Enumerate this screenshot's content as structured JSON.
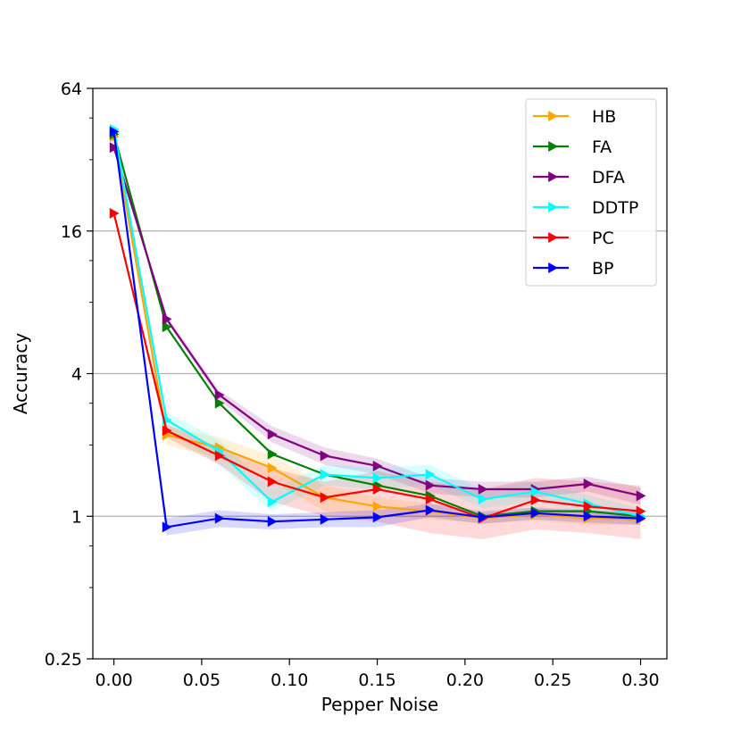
{
  "chart_data": {
    "type": "line",
    "xlabel": "Pepper Noise",
    "ylabel": "Accuracy",
    "xlim": [
      -0.012,
      0.315
    ],
    "ylim": [
      0.25,
      64
    ],
    "yscale": "log2",
    "x_ticks": [
      0.0,
      0.05,
      0.1,
      0.15,
      0.2,
      0.25,
      0.3
    ],
    "x_tick_labels": [
      "0.00",
      "0.05",
      "0.10",
      "0.15",
      "0.20",
      "0.25",
      "0.30"
    ],
    "y_ticks": [
      0.25,
      1,
      4,
      16,
      64
    ],
    "y_tick_labels": [
      "0.25",
      "1",
      "4",
      "16",
      "64"
    ],
    "grid": "y-major",
    "legend_position": "top-right",
    "x": [
      0.0,
      0.03,
      0.06,
      0.09,
      0.12,
      0.15,
      0.18,
      0.21,
      0.24,
      0.27,
      0.3
    ],
    "series": [
      {
        "name": "HB",
        "color": "#ffa500",
        "values": [
          40,
          2.2,
          1.95,
          1.6,
          1.2,
          1.1,
          1.05,
          0.98,
          1.02,
          0.98,
          0.97
        ],
        "band_low": [
          40,
          2.0,
          1.75,
          1.4,
          1.05,
          1.0,
          0.97,
          0.93,
          0.96,
          0.92,
          0.92
        ],
        "band_high": [
          40,
          2.4,
          2.15,
          1.8,
          1.35,
          1.2,
          1.13,
          1.03,
          1.08,
          1.04,
          1.02
        ]
      },
      {
        "name": "FA",
        "color": "#008000",
        "values": [
          41,
          6.3,
          3.0,
          1.83,
          1.5,
          1.35,
          1.22,
          1.0,
          1.05,
          1.05,
          1.0
        ],
        "band_low": [
          41,
          6.3,
          3.0,
          1.83,
          1.5,
          1.35,
          1.22,
          1.0,
          1.05,
          1.05,
          1.0
        ],
        "band_high": [
          41,
          6.3,
          3.0,
          1.83,
          1.5,
          1.35,
          1.22,
          1.0,
          1.05,
          1.05,
          1.0
        ]
      },
      {
        "name": "DFA",
        "color": "#800080",
        "values": [
          36,
          6.8,
          3.25,
          2.22,
          1.8,
          1.63,
          1.35,
          1.3,
          1.3,
          1.37,
          1.22
        ],
        "band_low": [
          36,
          6.6,
          3.1,
          2.05,
          1.65,
          1.5,
          1.25,
          1.2,
          1.2,
          1.27,
          1.12
        ],
        "band_high": [
          36,
          7.0,
          3.4,
          2.4,
          1.95,
          1.75,
          1.45,
          1.4,
          1.4,
          1.47,
          1.32
        ]
      },
      {
        "name": "DDTP",
        "color": "#00ffff",
        "values": [
          43,
          2.55,
          1.88,
          1.15,
          1.5,
          1.45,
          1.5,
          1.18,
          1.27,
          1.13,
          1.0
        ],
        "band_low": [
          43,
          2.3,
          1.65,
          1.05,
          1.35,
          1.3,
          1.35,
          1.08,
          1.15,
          1.03,
          0.93
        ],
        "band_high": [
          43,
          2.75,
          2.1,
          1.3,
          1.65,
          1.6,
          1.65,
          1.3,
          1.4,
          1.23,
          1.08
        ]
      },
      {
        "name": "PC",
        "color": "#ff0000",
        "values": [
          19,
          2.3,
          1.8,
          1.4,
          1.2,
          1.3,
          1.18,
          0.98,
          1.17,
          1.1,
          1.05
        ],
        "band_low": [
          19,
          2.15,
          1.65,
          1.15,
          1.0,
          0.95,
          0.85,
          0.8,
          0.88,
          0.85,
          0.8
        ],
        "band_high": [
          19,
          2.45,
          1.95,
          1.6,
          1.4,
          1.55,
          1.4,
          1.3,
          1.45,
          1.4,
          1.35
        ]
      },
      {
        "name": "BP",
        "color": "#0000ff",
        "values": [
          42,
          0.9,
          0.98,
          0.95,
          0.97,
          0.99,
          1.06,
          0.99,
          1.03,
          1.0,
          0.98
        ],
        "band_low": [
          42,
          0.83,
          0.9,
          0.88,
          0.9,
          0.9,
          0.99,
          0.93,
          0.97,
          0.94,
          0.92
        ],
        "band_high": [
          42,
          0.98,
          1.06,
          1.02,
          1.04,
          1.06,
          1.13,
          1.05,
          1.09,
          1.06,
          1.04
        ]
      }
    ]
  }
}
